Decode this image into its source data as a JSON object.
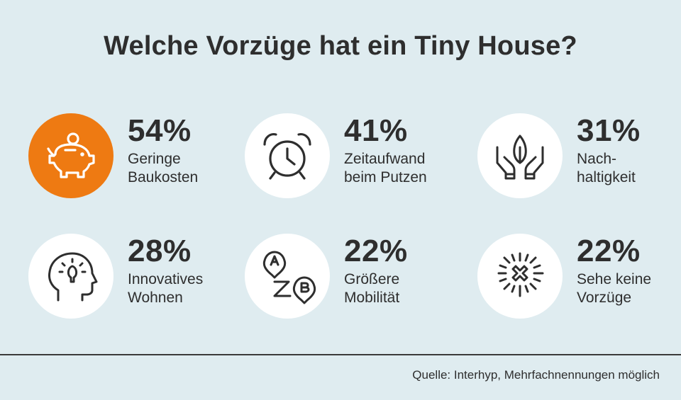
{
  "title": "Welche Vorzüge hat ein Tiny House?",
  "source": "Quelle: Interhyp, Mehrfachnennungen möglich",
  "colors": {
    "background": "#dfecf0",
    "accent": "#ee7a12",
    "text": "#2e2e2e"
  },
  "chart_data": {
    "type": "bar",
    "title": "Welche Vorzüge hat ein Tiny House?",
    "unit": "%",
    "categories": [
      "Geringe Baukosten",
      "Zeitaufwand beim Putzen",
      "Nachhaltigkeit",
      "Innovatives Wohnen",
      "Größere Mobilität",
      "Sehe keine Vorzüge"
    ],
    "values": [
      54,
      41,
      31,
      28,
      22,
      22
    ]
  },
  "items": [
    {
      "value": "54%",
      "line1": "Geringe",
      "line2": "Baukosten",
      "icon": "piggy-bank-icon",
      "highlight": true
    },
    {
      "value": "41%",
      "line1": "Zeitaufwand",
      "line2": "beim Putzen",
      "icon": "alarm-clock-icon",
      "highlight": false
    },
    {
      "value": "31%",
      "line1": "Nach-",
      "line2": "haltigkeit",
      "icon": "hands-leaf-icon",
      "highlight": false
    },
    {
      "value": "28%",
      "line1": "Innovatives",
      "line2": "Wohnen",
      "icon": "head-lightbulb-icon",
      "highlight": false
    },
    {
      "value": "22%",
      "line1": "Größere",
      "line2": "Mobilität",
      "icon": "route-a-to-b-icon",
      "highlight": false
    },
    {
      "value": "22%",
      "line1": "Sehe keine",
      "line2": "Vorzüge",
      "icon": "burst-x-icon",
      "highlight": false
    }
  ]
}
